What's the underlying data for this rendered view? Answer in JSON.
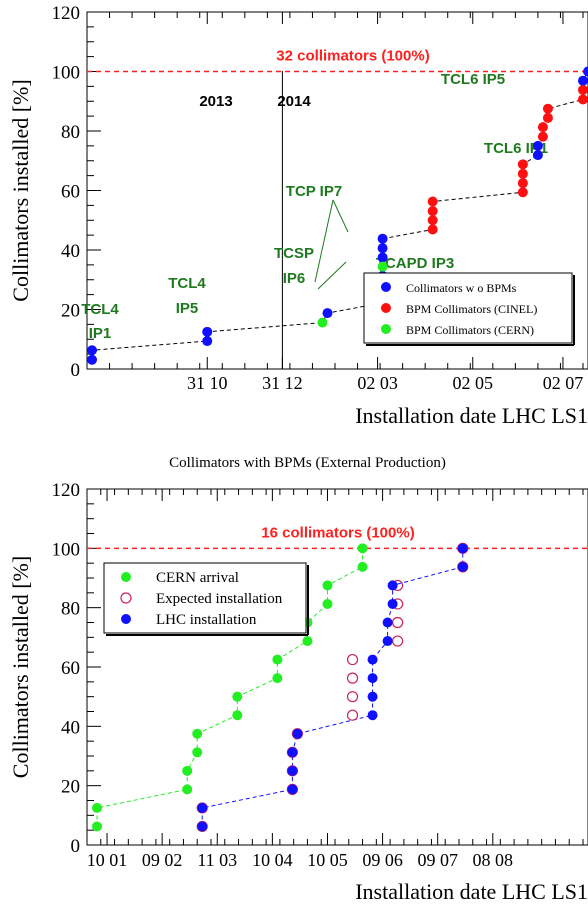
{
  "chart_data": [
    {
      "type": "scatter",
      "title": "",
      "xlabel": "Installation date LHC LS1",
      "ylabel": "Collimators installed [%]",
      "ylim": [
        0,
        120
      ],
      "yticks": [
        0,
        20,
        40,
        60,
        80,
        100,
        120
      ],
      "xlim": [
        0,
        100
      ],
      "xticks": [
        {
          "x": 24,
          "label": "31 10"
        },
        {
          "x": 39,
          "label": "31 12"
        },
        {
          "x": 58,
          "label": "02 03"
        },
        {
          "x": 77,
          "label": "02 05"
        },
        {
          "x": 95,
          "label": "02 07"
        }
      ],
      "reference_line": {
        "y": 100,
        "label": "32 collimators (100%)",
        "color": "#ff2020"
      },
      "year_divider": {
        "x": 39,
        "left_label": "2013",
        "right_label": "2014"
      },
      "annotations": [
        {
          "text": "TCL4",
          "text2": "IP1",
          "color": "#1f7a1f"
        },
        {
          "text": "TCL4",
          "text2": "IP5",
          "color": "#1f7a1f"
        },
        {
          "text": "TCSP",
          "text2": "IP6",
          "color": "#1f7a1f"
        },
        {
          "text": "TCP IP7",
          "color": "#1f7a1f"
        },
        {
          "text": "TCAPD IP3",
          "color": "#1f7a1f"
        },
        {
          "text": "TCL6 IP1",
          "color": "#1f7a1f"
        },
        {
          "text": "TCL6 IP5",
          "color": "#1f7a1f"
        }
      ],
      "legend": {
        "position": "bottom-right"
      },
      "series": [
        {
          "name": "Collimators w o BPMs",
          "color": "#1010ff",
          "points": [
            [
              1,
              3.1
            ],
            [
              1,
              6.3
            ],
            [
              24,
              9.4
            ],
            [
              24,
              12.5
            ],
            [
              48,
              18.8
            ],
            [
              59,
              28.1
            ],
            [
              59,
              31.3
            ],
            [
              59,
              37.5
            ],
            [
              59,
              40.6
            ],
            [
              59,
              43.8
            ],
            [
              90,
              71.9
            ],
            [
              90,
              75
            ],
            [
              99,
              96.9
            ],
            [
              100,
              100
            ]
          ]
        },
        {
          "name": "BPM Collimators (CINEL)",
          "color": "#ff1010",
          "points": [
            [
              58,
              21.9
            ],
            [
              58,
              25
            ],
            [
              69,
              46.9
            ],
            [
              69,
              50
            ],
            [
              69,
              53.1
            ],
            [
              69,
              56.3
            ],
            [
              87,
              59.4
            ],
            [
              87,
              62.5
            ],
            [
              87,
              65.6
            ],
            [
              87,
              68.8
            ],
            [
              91,
              78.1
            ],
            [
              91,
              81.3
            ],
            [
              92,
              84.4
            ],
            [
              92,
              87.5
            ],
            [
              99,
              90.6
            ],
            [
              99,
              93.8
            ]
          ]
        },
        {
          "name": "BPM Collimators (CERN)",
          "color": "#22ee22",
          "points": [
            [
              47,
              15.6
            ],
            [
              59,
              34.4
            ]
          ]
        }
      ],
      "trend": [
        [
          1,
          3.1
        ],
        [
          1,
          6.3
        ],
        [
          24,
          9.4
        ],
        [
          24,
          12.5
        ],
        [
          47,
          15.6
        ],
        [
          48,
          18.8
        ],
        [
          58,
          21.9
        ],
        [
          58,
          25
        ],
        [
          59,
          28.1
        ],
        [
          59,
          31.3
        ],
        [
          59,
          34.4
        ],
        [
          59,
          37.5
        ],
        [
          59,
          40.6
        ],
        [
          59,
          43.8
        ],
        [
          69,
          46.9
        ],
        [
          69,
          50
        ],
        [
          69,
          53.1
        ],
        [
          69,
          56.3
        ],
        [
          87,
          59.4
        ],
        [
          87,
          62.5
        ],
        [
          87,
          65.6
        ],
        [
          87,
          68.8
        ],
        [
          90,
          71.9
        ],
        [
          90,
          75
        ],
        [
          91,
          78.1
        ],
        [
          91,
          81.3
        ],
        [
          92,
          84.4
        ],
        [
          92,
          87.5
        ],
        [
          99,
          90.6
        ],
        [
          99,
          93.8
        ],
        [
          99,
          96.9
        ],
        [
          100,
          100
        ]
      ]
    },
    {
      "type": "scatter",
      "title": "Collimators with BPMs (External Production)",
      "xlabel": "Installation date LHC LS1",
      "ylabel": "Collimators installed [%]",
      "ylim": [
        0,
        120
      ],
      "yticks": [
        0,
        20,
        40,
        60,
        80,
        100,
        120
      ],
      "xlim": [
        0,
        100
      ],
      "xticks": [
        {
          "x": 4,
          "label": "10 01"
        },
        {
          "x": 15,
          "label": "09 02"
        },
        {
          "x": 26,
          "label": "11 03"
        },
        {
          "x": 37,
          "label": "10 04"
        },
        {
          "x": 48,
          "label": "10 05"
        },
        {
          "x": 59,
          "label": "09 06"
        },
        {
          "x": 70,
          "label": "09 07"
        },
        {
          "x": 81,
          "label": "08 08"
        }
      ],
      "reference_line": {
        "y": 100,
        "label": "16 collimators (100%)",
        "color": "#ff2020"
      },
      "legend": {
        "position": "top-left"
      },
      "series": [
        {
          "name": "CERN arrival",
          "color": "#22ee22",
          "marker": "filled",
          "points": [
            [
              2,
              6.25
            ],
            [
              2,
              12.5
            ],
            [
              20,
              18.75
            ],
            [
              20,
              25
            ],
            [
              22,
              31.25
            ],
            [
              22,
              37.5
            ],
            [
              30,
              43.75
            ],
            [
              30,
              50
            ],
            [
              38,
              56.25
            ],
            [
              38,
              62.5
            ],
            [
              44,
              68.75
            ],
            [
              44,
              75
            ],
            [
              48,
              81.25
            ],
            [
              48,
              87.5
            ],
            [
              55,
              93.75
            ],
            [
              55,
              100
            ]
          ]
        },
        {
          "name": "Expected installation",
          "color": "#cc2255",
          "marker": "open",
          "points": [
            [
              23,
              6.25
            ],
            [
              23,
              12.5
            ],
            [
              41,
              18.75
            ],
            [
              41,
              25
            ],
            [
              41,
              31.25
            ],
            [
              42,
              37.5
            ],
            [
              53,
              43.75
            ],
            [
              53,
              50
            ],
            [
              53,
              56.25
            ],
            [
              53,
              62.5
            ],
            [
              62,
              68.75
            ],
            [
              62,
              75
            ],
            [
              62,
              81.25
            ],
            [
              62,
              87.5
            ],
            [
              75,
              93.75
            ],
            [
              75,
              100
            ]
          ]
        },
        {
          "name": "LHC installation",
          "color": "#1010ff",
          "marker": "filled",
          "points": [
            [
              23,
              6.25
            ],
            [
              23,
              12.5
            ],
            [
              41,
              18.75
            ],
            [
              41,
              25
            ],
            [
              41,
              31.25
            ],
            [
              42,
              37.5
            ],
            [
              57,
              43.75
            ],
            [
              57,
              50
            ],
            [
              57,
              56.25
            ],
            [
              57,
              62.5
            ],
            [
              60,
              68.75
            ],
            [
              60,
              75
            ],
            [
              61,
              81.25
            ],
            [
              61,
              87.5
            ],
            [
              75,
              93.75
            ],
            [
              75,
              100
            ]
          ]
        }
      ]
    }
  ]
}
